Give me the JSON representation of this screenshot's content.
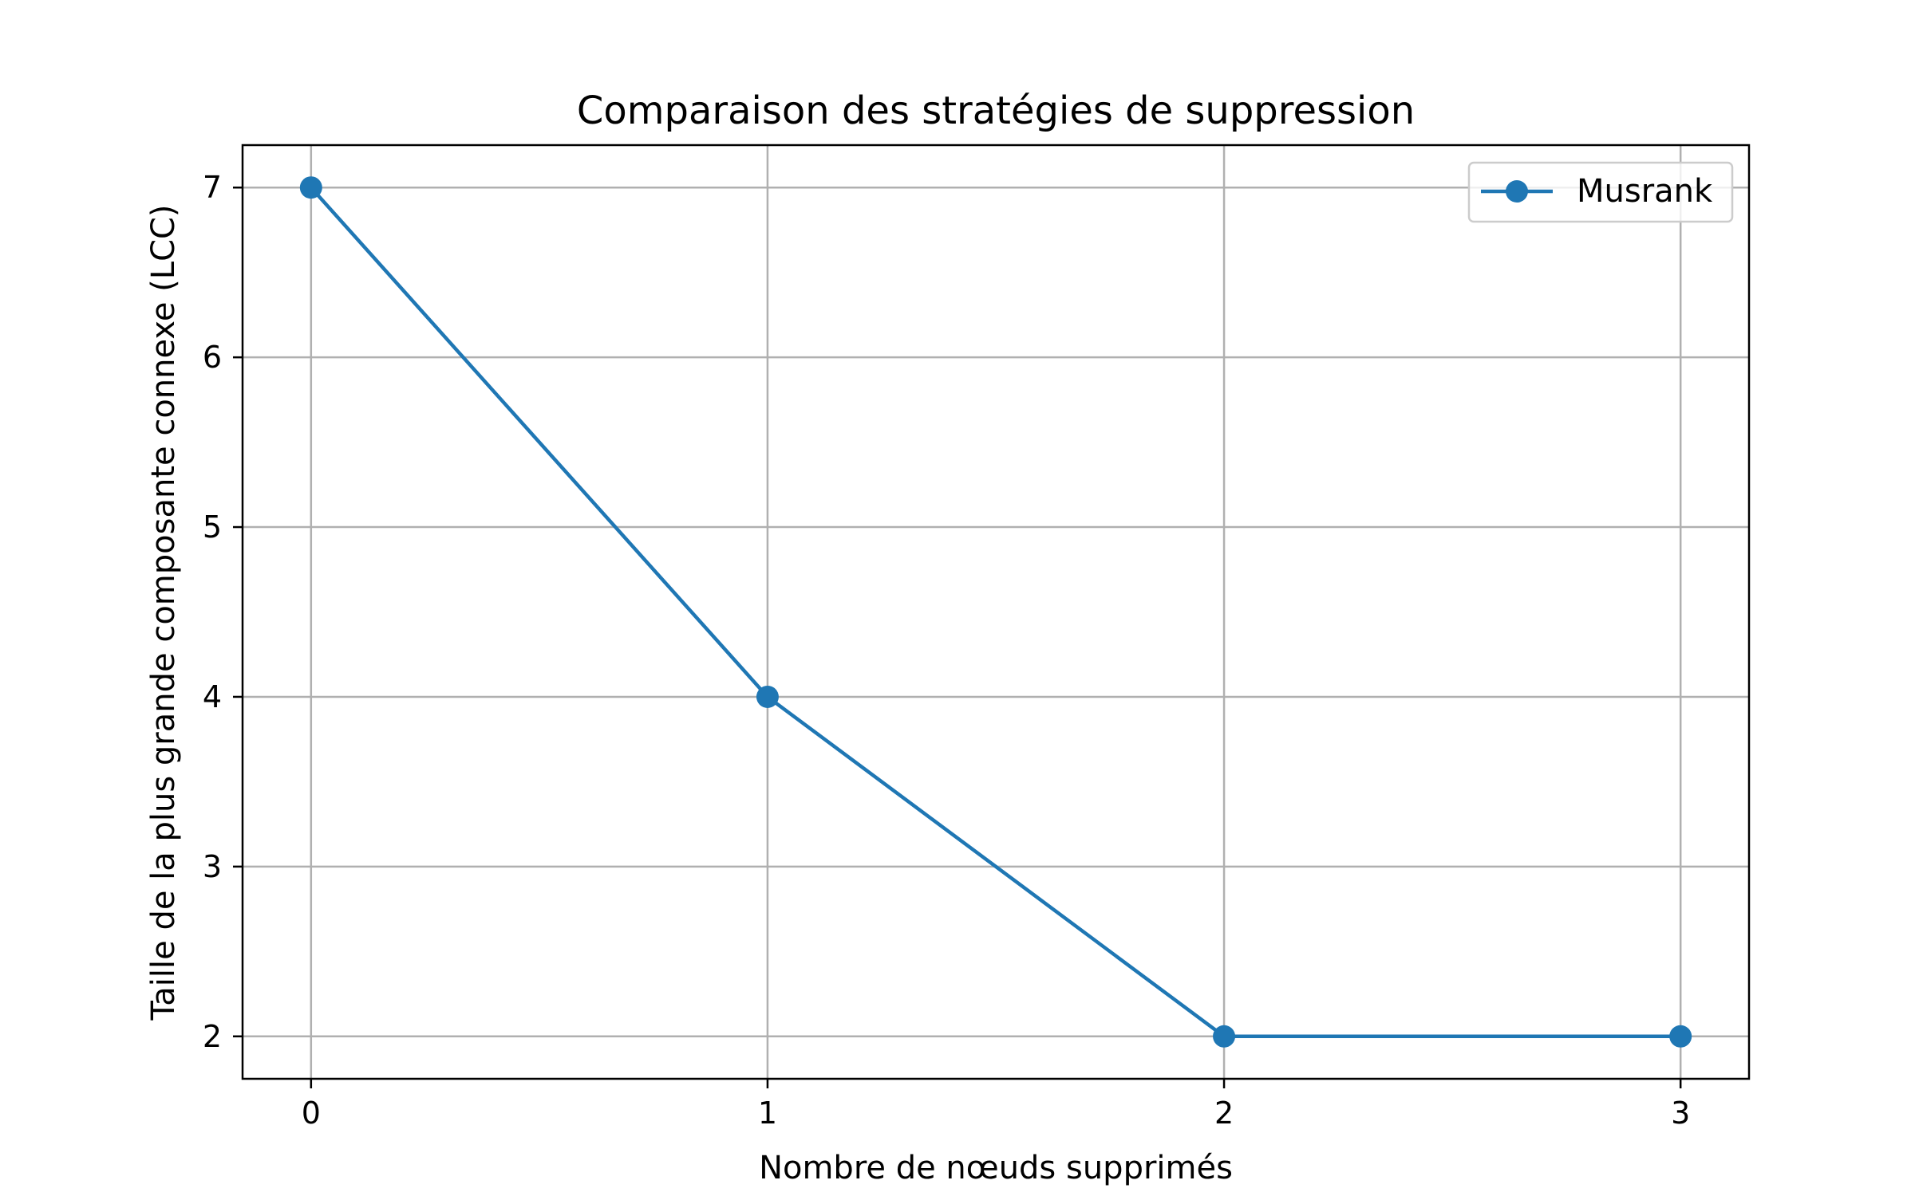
{
  "chart_data": {
    "type": "line",
    "title": "Comparaison des stratégies de suppression",
    "xlabel": "Nombre de nœuds supprimés",
    "ylabel": "Taille de la plus grande composante connexe (LCC)",
    "x": [
      0,
      1,
      2,
      3
    ],
    "xticks": [
      "0",
      "1",
      "2",
      "3"
    ],
    "yticks": [
      "2",
      "3",
      "4",
      "5",
      "6",
      "7"
    ],
    "xlim": [
      -0.15,
      3.15
    ],
    "ylim": [
      1.75,
      7.25
    ],
    "grid": true,
    "legend_position": "top-right",
    "series": [
      {
        "name": "Musrank",
        "values": [
          7,
          4,
          2,
          2
        ],
        "color": "#1f77b4",
        "marker": "circle"
      }
    ]
  }
}
